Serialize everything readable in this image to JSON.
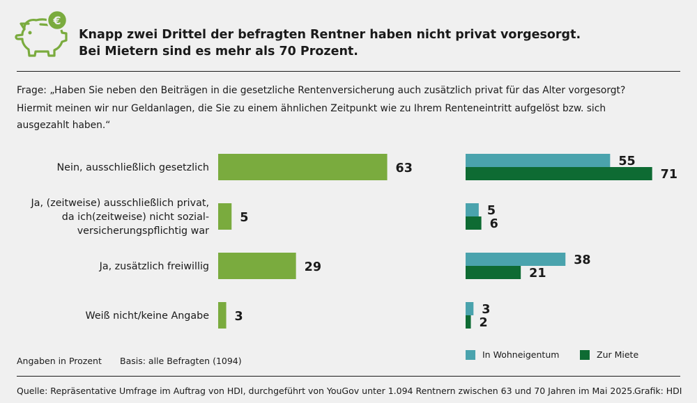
{
  "header": {
    "title_line1": "Knapp zwei Drittel der befragten Rentner haben nicht privat vorgesorgt.",
    "title_line2": "Bei Mietern sind es mehr als 70 Prozent.",
    "logo_icon": "piggy-bank-euro-icon"
  },
  "question": {
    "line1": "Frage: „Haben Sie neben den Beiträgen in die gesetzliche Rentenversicherung auch zusätzlich privat für das Alter vorgesorgt?",
    "line2": "Hiermit meinen wir nur Geldanlagen, die Sie zu einem ähnlichen Zeitpunkt wie zu Ihrem Renteneintritt aufgelöst bzw. sich",
    "line3": "ausgezahlt haben.“"
  },
  "chart_data": [
    {
      "type": "bar",
      "orientation": "horizontal",
      "categories": [
        [
          "Nein, ausschließlich gesetzlich"
        ],
        [
          "Ja, (zeitweise) ausschließlich privat,",
          "da ich(zeitweise) nicht sozial-",
          "versicherungspflichtig war"
        ],
        [
          "Ja, zusätzlich freiwillig"
        ],
        [
          "Weiß nicht/keine Angabe"
        ]
      ],
      "values": [
        63,
        5,
        29,
        3
      ],
      "color": "#7aab3e",
      "xlim": [
        0,
        100
      ]
    },
    {
      "type": "bar",
      "orientation": "horizontal",
      "series": [
        {
          "name": "In Wohneigentum",
          "values": [
            55,
            5,
            38,
            3
          ],
          "color": "#4aa3ad"
        },
        {
          "name": "Zur Miete",
          "values": [
            71,
            6,
            21,
            2
          ],
          "color": "#0e6b33"
        }
      ],
      "xlim": [
        0,
        100
      ],
      "legend": "bottom"
    }
  ],
  "footer": {
    "unit_note": "Angaben in Prozent",
    "basis_note": "Basis: alle Befragten (1094)",
    "source": "Quelle: Repräsentative Umfrage im Auftrag von HDI, durchgeführt von YouGov unter 1.094 Rentnern zwischen 63 und 70 Jahren im Mai 2025.",
    "credit": "Grafik: HDI"
  },
  "colors": {
    "green": "#7aab3e",
    "teal": "#4aa3ad",
    "dark_green": "#0e6b33",
    "logo": "#7aab3e"
  }
}
